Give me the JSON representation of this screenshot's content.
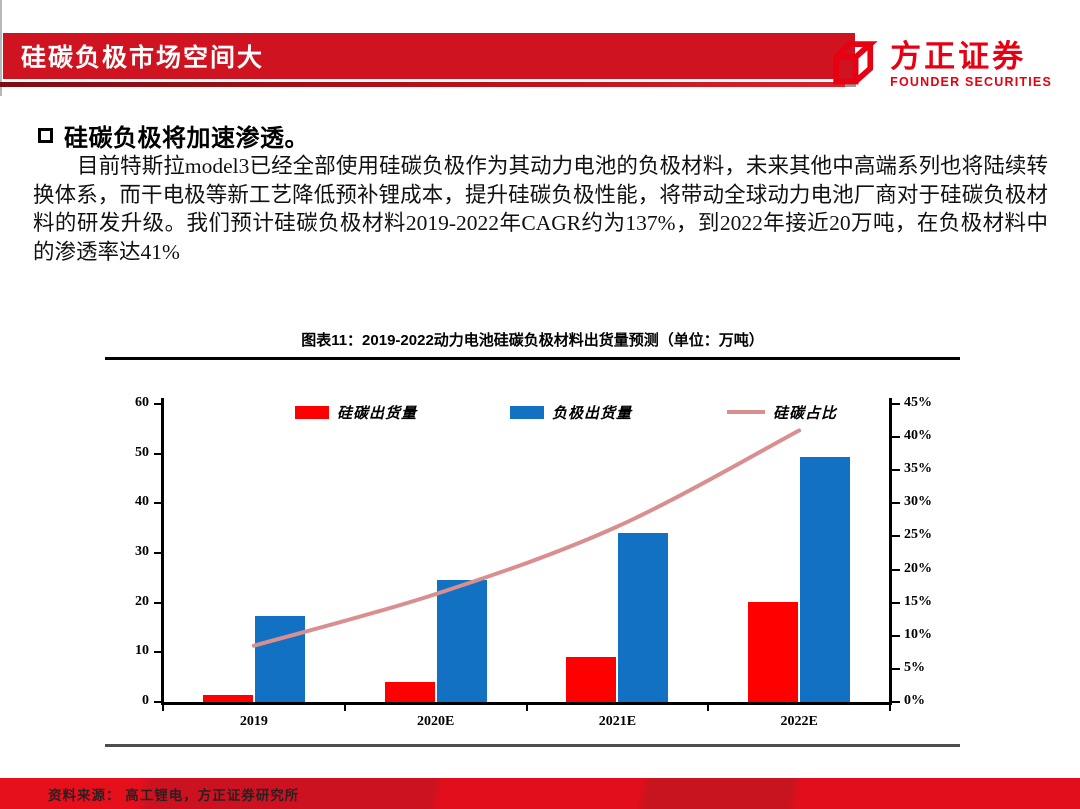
{
  "header": {
    "title": "硅碳负极市场空间大",
    "logo": {
      "cn": "方正证券",
      "en": "FOUNDER SECURITIES"
    }
  },
  "content": {
    "heading": "硅碳负极将加速渗透。",
    "paragraph": "目前特斯拉model3已经全部使用硅碳负极作为其动力电池的负极材料，未来其他中高端系列也将陆续转换体系，而干电极等新工艺降低预补锂成本，提升硅碳负极性能，将带动全球动力电池厂商对于硅碳负极材料的研发升级。我们预计硅碳负极材料2019-2022年CAGR约为137%，到2022年接近20万吨，在负极材料中的渗透率达41%"
  },
  "figure": {
    "title": "图表11：2019-2022动力电池硅碳负极材料出货量预测（单位：万吨）"
  },
  "chart_data": {
    "type": "bar",
    "subtype": "bar+line combo, dual axis",
    "title": "2019-2022动力电池硅碳负极材料出货量预测（单位：万吨）",
    "categories": [
      "2019",
      "2020E",
      "2021E",
      "2022E"
    ],
    "series": [
      {
        "name": "硅碳出货量",
        "type": "bar",
        "axis": "left",
        "color": "#fe0000",
        "values": [
          1.5,
          4,
          9,
          20.2
        ]
      },
      {
        "name": "负极出货量",
        "type": "bar",
        "axis": "left",
        "color": "#1371c3",
        "values": [
          17.3,
          24.5,
          34,
          49.3
        ]
      },
      {
        "name": "硅碳占比",
        "type": "line",
        "axis": "right",
        "color": "#d98f8f",
        "values": [
          8.5,
          16.3,
          26.5,
          41
        ]
      }
    ],
    "left_axis": {
      "min": 0,
      "max": 60,
      "step": 10,
      "ticks": [
        "0",
        "10",
        "20",
        "30",
        "40",
        "50",
        "60"
      ]
    },
    "right_axis": {
      "min": 0,
      "max": 45,
      "step": 5,
      "ticks": [
        "0%",
        "5%",
        "10%",
        "15%",
        "20%",
        "25%",
        "30%",
        "35%",
        "40%",
        "45%"
      ]
    },
    "legend_position": "top",
    "grid": false
  },
  "footer": {
    "source": "资料来源： 高工锂电，方正证券研究所"
  }
}
